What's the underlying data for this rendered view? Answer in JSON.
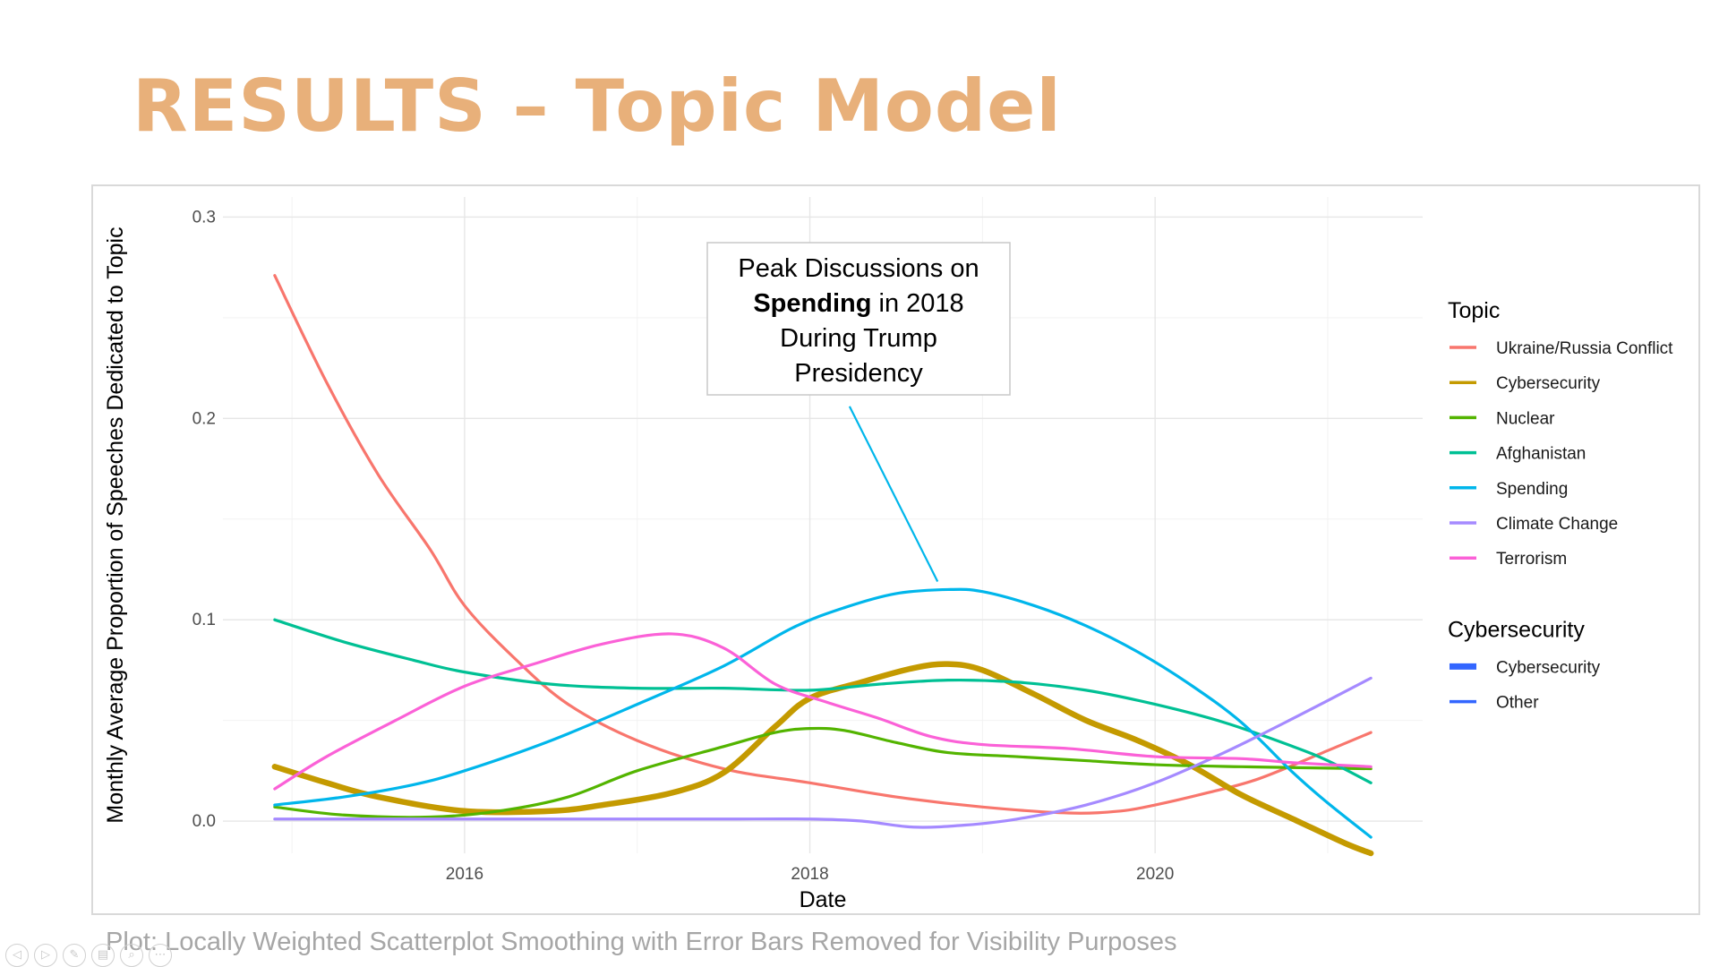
{
  "slide": {
    "title": "RESULTS – Topic Model",
    "caption": "Plot: Locally Weighted Scatterplot Smoothing with Error Bars Removed for Visibility Purposes"
  },
  "nav_icons": [
    "previous-slide-icon",
    "next-slide-icon",
    "pen-icon",
    "slides-overview-icon",
    "zoom-icon",
    "more-options-icon"
  ],
  "chart_data": {
    "type": "line",
    "title": "",
    "xlabel": "Date",
    "ylabel": "Monthly Average Proportion of Speeches Dedicated to Topic",
    "xlim": [
      2014.6,
      2021.55
    ],
    "ylim": [
      -0.016,
      0.31
    ],
    "x_ticks": [
      2016,
      2018,
      2020
    ],
    "x_tick_labels": [
      "2016",
      "2018",
      "2020"
    ],
    "y_ticks": [
      0.0,
      0.1,
      0.2,
      0.3
    ],
    "y_tick_labels": [
      "0.0",
      "0.1",
      "0.2",
      "0.3"
    ],
    "grid": true,
    "legend_placement": "right",
    "legends": [
      {
        "title": "Topic",
        "entries": [
          {
            "name": "Ukraine/Russia Conflict",
            "color": "#f8766d"
          },
          {
            "name": "Cybersecurity",
            "color": "#c49a00"
          },
          {
            "name": "Nuclear",
            "color": "#53b400"
          },
          {
            "name": "Afghanistan",
            "color": "#00c094"
          },
          {
            "name": "Spending",
            "color": "#00b6eb"
          },
          {
            "name": "Climate Change",
            "color": "#a58aff"
          },
          {
            "name": "Terrorism",
            "color": "#fb61d7"
          }
        ]
      },
      {
        "title": "Cybersecurity",
        "entries": [
          {
            "name": "Cybersecurity",
            "color": "#3366ff",
            "thick": true
          },
          {
            "name": "Other",
            "color": "#3366ff",
            "thick": false
          }
        ]
      }
    ],
    "annotation": {
      "lines": [
        [
          {
            "text": "Peak Discussions on",
            "bold": false
          }
        ],
        [
          {
            "text": "Spending",
            "bold": true
          },
          {
            "text": " in 2018",
            "bold": false
          }
        ],
        [
          {
            "text": "During Trump",
            "bold": false
          }
        ],
        [
          {
            "text": "Presidency",
            "bold": false
          }
        ]
      ],
      "arrow_from": [
        2018.23,
        0.206
      ],
      "arrow_to": [
        2018.74,
        0.119
      ],
      "arrow_color": "#00b6eb"
    },
    "series": [
      {
        "name": "Ukraine/Russia Conflict",
        "color": "#f8766d",
        "width": "normal",
        "points": [
          [
            2014.9,
            0.271
          ],
          [
            2015.2,
            0.218
          ],
          [
            2015.5,
            0.172
          ],
          [
            2015.8,
            0.135
          ],
          [
            2016.0,
            0.107
          ],
          [
            2016.3,
            0.08
          ],
          [
            2016.6,
            0.058
          ],
          [
            2017.0,
            0.04
          ],
          [
            2017.5,
            0.026
          ],
          [
            2018.0,
            0.019
          ],
          [
            2018.5,
            0.012
          ],
          [
            2019.0,
            0.007
          ],
          [
            2019.5,
            0.004
          ],
          [
            2019.8,
            0.005
          ],
          [
            2020.0,
            0.008
          ],
          [
            2020.3,
            0.014
          ],
          [
            2020.6,
            0.021
          ],
          [
            2021.0,
            0.035
          ],
          [
            2021.25,
            0.044
          ]
        ]
      },
      {
        "name": "Cybersecurity",
        "color": "#c49a00",
        "width": "thick",
        "points": [
          [
            2014.9,
            0.027
          ],
          [
            2015.2,
            0.019
          ],
          [
            2015.5,
            0.012
          ],
          [
            2016.0,
            0.005
          ],
          [
            2016.5,
            0.005
          ],
          [
            2016.8,
            0.008
          ],
          [
            2017.2,
            0.014
          ],
          [
            2017.5,
            0.024
          ],
          [
            2017.8,
            0.047
          ],
          [
            2018.0,
            0.061
          ],
          [
            2018.3,
            0.069
          ],
          [
            2018.6,
            0.076
          ],
          [
            2018.8,
            0.078
          ],
          [
            2019.0,
            0.075
          ],
          [
            2019.3,
            0.063
          ],
          [
            2019.6,
            0.05
          ],
          [
            2019.9,
            0.04
          ],
          [
            2020.2,
            0.028
          ],
          [
            2020.5,
            0.013
          ],
          [
            2020.8,
            0.001
          ],
          [
            2021.1,
            -0.011
          ],
          [
            2021.25,
            -0.016
          ]
        ]
      },
      {
        "name": "Nuclear",
        "color": "#53b400",
        "width": "normal",
        "points": [
          [
            2014.9,
            0.007
          ],
          [
            2015.3,
            0.003
          ],
          [
            2015.8,
            0.002
          ],
          [
            2016.2,
            0.005
          ],
          [
            2016.6,
            0.012
          ],
          [
            2017.0,
            0.025
          ],
          [
            2017.5,
            0.037
          ],
          [
            2017.8,
            0.044
          ],
          [
            2018.0,
            0.046
          ],
          [
            2018.2,
            0.045
          ],
          [
            2018.5,
            0.039
          ],
          [
            2018.8,
            0.034
          ],
          [
            2019.2,
            0.032
          ],
          [
            2019.6,
            0.03
          ],
          [
            2020.0,
            0.028
          ],
          [
            2020.5,
            0.027
          ],
          [
            2021.25,
            0.026
          ]
        ]
      },
      {
        "name": "Afghanistan",
        "color": "#00c094",
        "width": "normal",
        "points": [
          [
            2014.9,
            0.1
          ],
          [
            2015.3,
            0.089
          ],
          [
            2015.7,
            0.08
          ],
          [
            2016.0,
            0.074
          ],
          [
            2016.5,
            0.068
          ],
          [
            2017.0,
            0.066
          ],
          [
            2017.5,
            0.066
          ],
          [
            2018.0,
            0.065
          ],
          [
            2018.4,
            0.068
          ],
          [
            2018.8,
            0.07
          ],
          [
            2019.2,
            0.069
          ],
          [
            2019.6,
            0.065
          ],
          [
            2020.0,
            0.058
          ],
          [
            2020.4,
            0.049
          ],
          [
            2020.8,
            0.037
          ],
          [
            2021.0,
            0.03
          ],
          [
            2021.25,
            0.019
          ]
        ]
      },
      {
        "name": "Spending",
        "color": "#00b6eb",
        "width": "normal",
        "points": [
          [
            2014.9,
            0.008
          ],
          [
            2015.3,
            0.012
          ],
          [
            2015.7,
            0.018
          ],
          [
            2016.0,
            0.025
          ],
          [
            2016.5,
            0.04
          ],
          [
            2017.0,
            0.058
          ],
          [
            2017.5,
            0.077
          ],
          [
            2017.9,
            0.096
          ],
          [
            2018.2,
            0.106
          ],
          [
            2018.5,
            0.113
          ],
          [
            2018.8,
            0.115
          ],
          [
            2019.0,
            0.114
          ],
          [
            2019.3,
            0.107
          ],
          [
            2019.6,
            0.097
          ],
          [
            2019.9,
            0.084
          ],
          [
            2020.2,
            0.068
          ],
          [
            2020.5,
            0.049
          ],
          [
            2020.8,
            0.024
          ],
          [
            2021.0,
            0.009
          ],
          [
            2021.25,
            -0.008
          ]
        ]
      },
      {
        "name": "Climate Change",
        "color": "#a58aff",
        "width": "normal",
        "points": [
          [
            2014.9,
            0.001
          ],
          [
            2015.5,
            0.001
          ],
          [
            2016.0,
            0.001
          ],
          [
            2016.5,
            0.001
          ],
          [
            2017.0,
            0.001
          ],
          [
            2017.5,
            0.001
          ],
          [
            2018.0,
            0.001
          ],
          [
            2018.3,
            0.0
          ],
          [
            2018.6,
            -0.003
          ],
          [
            2018.9,
            -0.002
          ],
          [
            2019.2,
            0.001
          ],
          [
            2019.6,
            0.008
          ],
          [
            2020.0,
            0.019
          ],
          [
            2020.4,
            0.034
          ],
          [
            2020.8,
            0.051
          ],
          [
            2021.25,
            0.071
          ]
        ]
      },
      {
        "name": "Terrorism",
        "color": "#fb61d7",
        "width": "normal",
        "points": [
          [
            2014.9,
            0.016
          ],
          [
            2015.2,
            0.032
          ],
          [
            2015.6,
            0.05
          ],
          [
            2016.0,
            0.067
          ],
          [
            2016.4,
            0.078
          ],
          [
            2016.8,
            0.088
          ],
          [
            2017.2,
            0.093
          ],
          [
            2017.5,
            0.086
          ],
          [
            2017.8,
            0.068
          ],
          [
            2018.1,
            0.059
          ],
          [
            2018.4,
            0.051
          ],
          [
            2018.7,
            0.042
          ],
          [
            2019.0,
            0.038
          ],
          [
            2019.5,
            0.036
          ],
          [
            2020.0,
            0.032
          ],
          [
            2020.5,
            0.031
          ],
          [
            2020.8,
            0.029
          ],
          [
            2021.25,
            0.027
          ]
        ]
      }
    ]
  }
}
